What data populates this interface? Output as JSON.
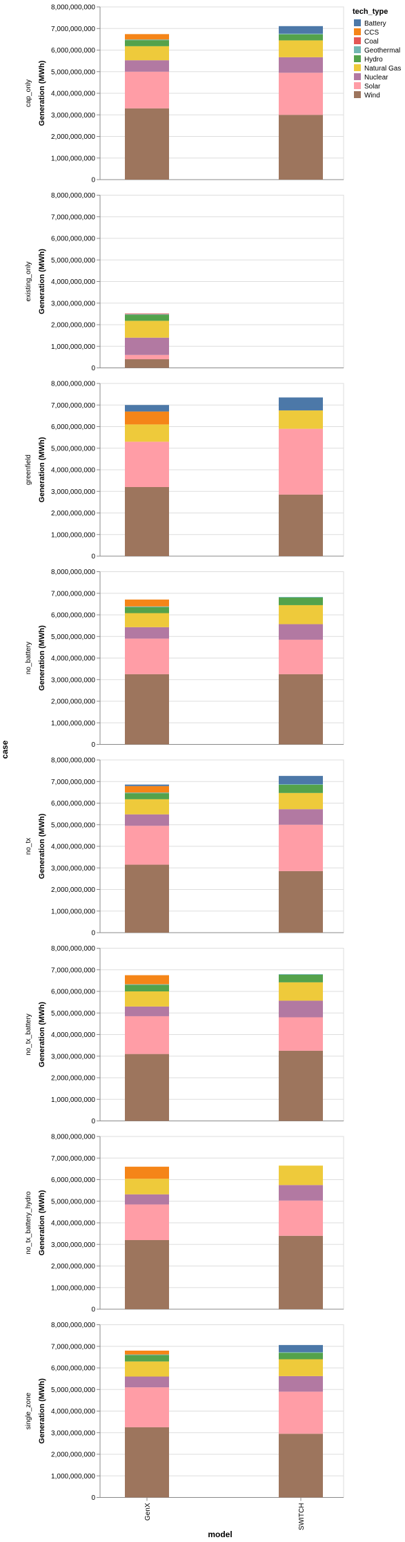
{
  "chart_data": {
    "type": "bar",
    "stacked": true,
    "facet_field": "case",
    "x_title": "model",
    "y_title": "Generation (MWh)",
    "legend_title": "tech_type",
    "legend_position": "top-right",
    "ylim": [
      0,
      8000000000
    ],
    "y_ticks": [
      0,
      1000000000,
      2000000000,
      3000000000,
      4000000000,
      5000000000,
      6000000000,
      7000000000,
      8000000000
    ],
    "y_tick_labels": [
      "0",
      "1,000,000,000",
      "2,000,000,000",
      "3,000,000,000",
      "4,000,000,000",
      "5,000,000,000",
      "6,000,000,000",
      "7,000,000,000",
      "8,000,000,000"
    ],
    "grid": true,
    "categories": [
      "GenX",
      "SWITCH"
    ],
    "technologies": [
      {
        "name": "Battery",
        "color": "#4c78a8"
      },
      {
        "name": "CCS",
        "color": "#f58518"
      },
      {
        "name": "Coal",
        "color": "#e45756"
      },
      {
        "name": "Geothermal",
        "color": "#72b7b2"
      },
      {
        "name": "Hydro",
        "color": "#54a24b"
      },
      {
        "name": "Natural Gas",
        "color": "#eeca3b"
      },
      {
        "name": "Nuclear",
        "color": "#b279a2"
      },
      {
        "name": "Solar",
        "color": "#ff9da6"
      },
      {
        "name": "Wind",
        "color": "#9d755d"
      }
    ],
    "facets": [
      {
        "case": "cap_only",
        "values": {
          "GenX": {
            "Battery": 0,
            "CCS": 250000000,
            "Coal": 0,
            "Geothermal": 30000000,
            "Hydro": 280000000,
            "Natural Gas": 650000000,
            "Nuclear": 530000000,
            "Solar": 1700000000,
            "Wind": 3300000000
          },
          "SWITCH": {
            "Battery": 350000000,
            "CCS": 0,
            "Coal": 0,
            "Geothermal": 30000000,
            "Hydro": 280000000,
            "Natural Gas": 780000000,
            "Nuclear": 720000000,
            "Solar": 1950000000,
            "Wind": 3000000000
          }
        }
      },
      {
        "case": "existing_only",
        "values": {
          "GenX": {
            "Battery": 0,
            "CCS": 0,
            "Coal": 30000000,
            "Geothermal": 30000000,
            "Hydro": 280000000,
            "Natural Gas": 780000000,
            "Nuclear": 800000000,
            "Solar": 200000000,
            "Wind": 400000000
          }
        }
      },
      {
        "case": "greenfield",
        "values": {
          "GenX": {
            "Battery": 300000000,
            "CCS": 600000000,
            "Coal": 0,
            "Geothermal": 0,
            "Hydro": 0,
            "Natural Gas": 800000000,
            "Nuclear": 0,
            "Solar": 2100000000,
            "Wind": 3200000000
          },
          "SWITCH": {
            "Battery": 600000000,
            "CCS": 0,
            "Coal": 0,
            "Geothermal": 0,
            "Hydro": 0,
            "Natural Gas": 850000000,
            "Nuclear": 0,
            "Solar": 3050000000,
            "Wind": 2850000000
          }
        }
      },
      {
        "case": "no_battery",
        "values": {
          "GenX": {
            "Battery": 0,
            "CCS": 320000000,
            "Coal": 0,
            "Geothermal": 30000000,
            "Hydro": 280000000,
            "Natural Gas": 650000000,
            "Nuclear": 530000000,
            "Solar": 1650000000,
            "Wind": 3250000000
          },
          "SWITCH": {
            "Battery": 0,
            "CCS": 0,
            "Coal": 0,
            "Geothermal": 30000000,
            "Hydro": 350000000,
            "Natural Gas": 880000000,
            "Nuclear": 720000000,
            "Solar": 1600000000,
            "Wind": 3250000000
          }
        }
      },
      {
        "case": "no_tx",
        "values": {
          "GenX": {
            "Battery": 70000000,
            "CCS": 300000000,
            "Coal": 0,
            "Geothermal": 30000000,
            "Hydro": 280000000,
            "Natural Gas": 700000000,
            "Nuclear": 530000000,
            "Solar": 1800000000,
            "Wind": 3150000000
          },
          "SWITCH": {
            "Battery": 380000000,
            "CCS": 0,
            "Coal": 0,
            "Geothermal": 30000000,
            "Hydro": 380000000,
            "Natural Gas": 750000000,
            "Nuclear": 720000000,
            "Solar": 2150000000,
            "Wind": 2850000000
          }
        }
      },
      {
        "case": "no_tx_battery",
        "values": {
          "GenX": {
            "Battery": 0,
            "CCS": 420000000,
            "Coal": 0,
            "Geothermal": 30000000,
            "Hydro": 300000000,
            "Natural Gas": 700000000,
            "Nuclear": 450000000,
            "Solar": 1750000000,
            "Wind": 3100000000
          },
          "SWITCH": {
            "Battery": 0,
            "CCS": 0,
            "Coal": 0,
            "Geothermal": 30000000,
            "Hydro": 350000000,
            "Natural Gas": 850000000,
            "Nuclear": 770000000,
            "Solar": 1550000000,
            "Wind": 3250000000
          }
        }
      },
      {
        "case": "no_tx_battery_hydro",
        "values": {
          "GenX": {
            "Battery": 0,
            "CCS": 560000000,
            "Coal": 0,
            "Geothermal": 0,
            "Hydro": 0,
            "Natural Gas": 720000000,
            "Nuclear": 470000000,
            "Solar": 1650000000,
            "Wind": 3200000000
          },
          "SWITCH": {
            "Battery": 0,
            "CCS": 0,
            "Coal": 0,
            "Geothermal": 0,
            "Hydro": 0,
            "Natural Gas": 900000000,
            "Nuclear": 720000000,
            "Solar": 1630000000,
            "Wind": 3400000000
          }
        }
      },
      {
        "case": "single_zone",
        "values": {
          "GenX": {
            "Battery": 0,
            "CCS": 180000000,
            "Coal": 0,
            "Geothermal": 30000000,
            "Hydro": 290000000,
            "Natural Gas": 700000000,
            "Nuclear": 500000000,
            "Solar": 1850000000,
            "Wind": 3250000000
          },
          "SWITCH": {
            "Battery": 330000000,
            "CCS": 0,
            "Coal": 0,
            "Geothermal": 30000000,
            "Hydro": 300000000,
            "Natural Gas": 780000000,
            "Nuclear": 720000000,
            "Solar": 1950000000,
            "Wind": 2950000000
          }
        }
      }
    ]
  }
}
